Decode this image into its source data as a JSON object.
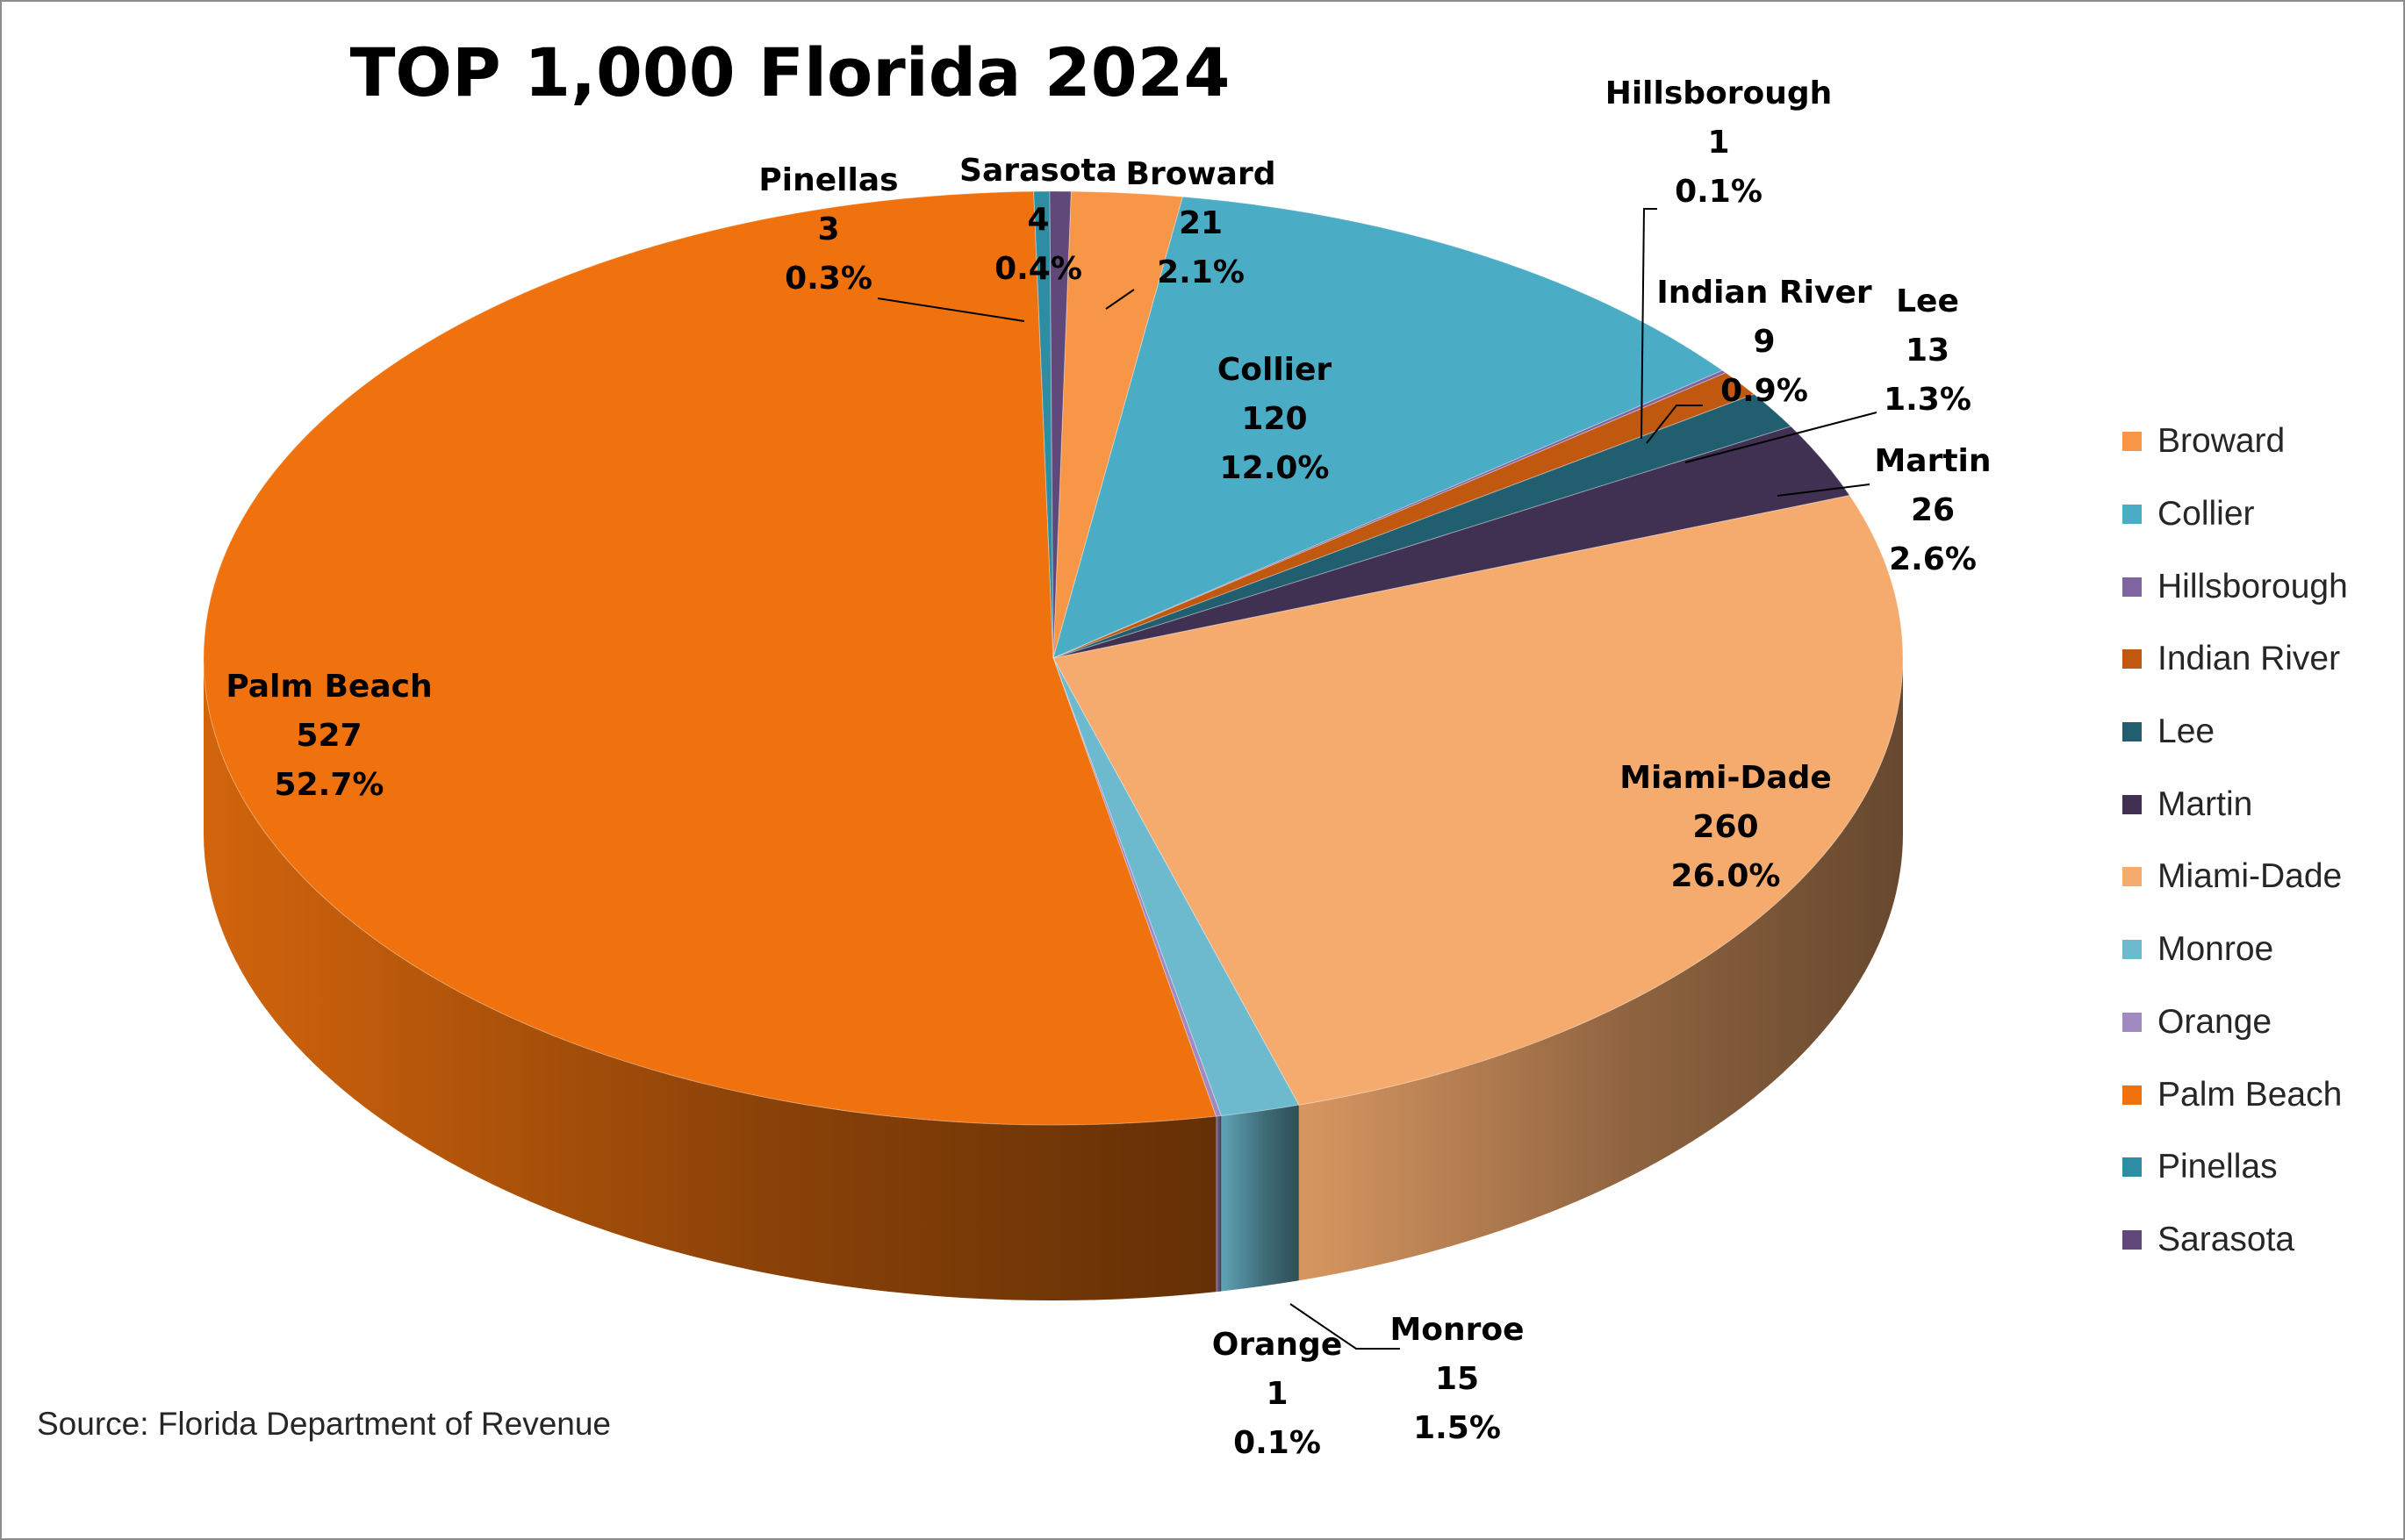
{
  "chart_data": {
    "type": "pie",
    "title": "TOP 1,000 Florida 2024",
    "source": "Source: Florida Department of Revenue",
    "legend_position": "right",
    "slices": [
      {
        "label": "Broward",
        "value": 21,
        "percent": "2.1%",
        "color": "#F79646"
      },
      {
        "label": "Collier",
        "value": 120,
        "percent": "12.0%",
        "color": "#4BACC6"
      },
      {
        "label": "Hillsborough",
        "value": 1,
        "percent": "0.1%",
        "color": "#8064A2"
      },
      {
        "label": "Indian River",
        "value": 9,
        "percent": "0.9%",
        "color": "#C0580F"
      },
      {
        "label": "Lee",
        "value": 13,
        "percent": "1.3%",
        "color": "#215E6F"
      },
      {
        "label": "Martin",
        "value": 26,
        "percent": "2.6%",
        "color": "#403152"
      },
      {
        "label": "Miami-Dade",
        "value": 260,
        "percent": "26.0%",
        "color": "#F5AB6E"
      },
      {
        "label": "Monroe",
        "value": 15,
        "percent": "1.5%",
        "color": "#6DBACF"
      },
      {
        "label": "Orange",
        "value": 1,
        "percent": "0.1%",
        "color": "#A08AC0"
      },
      {
        "label": "Palm Beach",
        "value": 527,
        "percent": "52.7%",
        "color": "#EF720E"
      },
      {
        "label": "Pinellas",
        "value": 3,
        "percent": "0.3%",
        "color": "#2E8DA3"
      },
      {
        "label": "Sarasota",
        "value": 4,
        "percent": "0.4%",
        "color": "#60497A"
      }
    ]
  }
}
